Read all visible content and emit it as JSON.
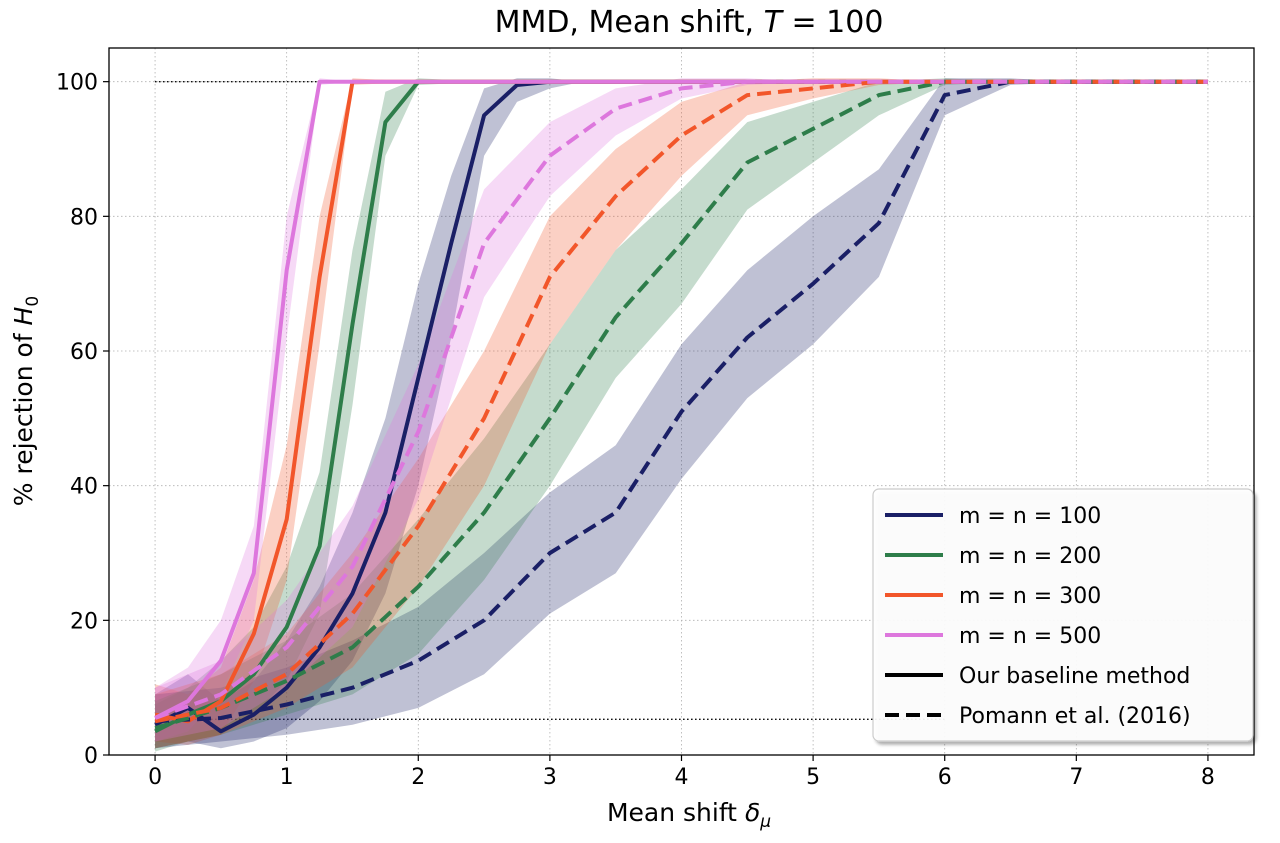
{
  "chart_data": {
    "type": "line",
    "title": "MMD, Mean shift, T = 100",
    "title_parts": [
      "MMD, Mean shift, ",
      "T",
      " = 100"
    ],
    "xlabel": "Mean shift δ_μ",
    "xlabel_parts": [
      "Mean shift ",
      "δ",
      "μ"
    ],
    "ylabel": "% rejection of H_0",
    "ylabel_parts": [
      "% rejection of ",
      "H",
      "0"
    ],
    "xlim": [
      -0.35,
      8.35
    ],
    "ylim": [
      0,
      105
    ],
    "xticks": [
      0,
      1,
      2,
      3,
      4,
      5,
      6,
      7,
      8
    ],
    "xtick_labels": [
      "0",
      "1",
      "2",
      "3",
      "4",
      "5",
      "6",
      "7",
      "8"
    ],
    "yticks": [
      0,
      20,
      40,
      60,
      80,
      100
    ],
    "ytick_labels": [
      "0",
      "20",
      "40",
      "60",
      "80",
      "100"
    ],
    "grid": true,
    "reference_lines": [
      {
        "name": "100% reference",
        "y": 100,
        "x_range": [
          0,
          6
        ],
        "style": "dotted"
      },
      {
        "name": "5% level reference",
        "y": 5.3,
        "x_range": [
          0,
          6
        ],
        "style": "dotted"
      }
    ],
    "series": [
      {
        "name": "m = n = 100, Our baseline method",
        "color": "#1a1f66",
        "style": "solid",
        "x": [
          0,
          0.25,
          0.5,
          0.75,
          1,
          1.25,
          1.5,
          1.75,
          2,
          2.25,
          2.5,
          2.75,
          3,
          3.25,
          3.5,
          4,
          4.5,
          5,
          5.5,
          6,
          6.5,
          7,
          7.5,
          8
        ],
        "y": [
          4.5,
          7,
          3.5,
          6,
          10,
          16,
          24,
          36,
          56,
          76,
          95,
          99.5,
          100,
          100,
          100,
          100,
          100,
          100,
          100,
          100,
          100,
          100,
          100,
          100
        ],
        "lower": [
          1,
          2,
          1,
          2,
          4,
          8,
          14,
          24,
          40,
          62,
          89,
          97,
          99,
          100,
          100,
          100,
          100,
          100,
          100,
          100,
          100,
          100,
          100,
          100
        ],
        "upper": [
          9,
          12,
          8,
          11,
          17,
          25,
          36,
          50,
          70,
          86,
          99,
          100.5,
          100.5,
          100,
          100,
          100,
          100,
          100,
          100,
          100,
          100,
          100,
          100,
          100
        ]
      },
      {
        "name": "m = n = 200, Our baseline method",
        "color": "#2e7d4a",
        "style": "solid",
        "x": [
          0,
          0.25,
          0.5,
          0.75,
          1,
          1.25,
          1.5,
          1.75,
          2,
          2.5,
          3,
          3.5,
          4,
          4.5,
          5,
          5.5,
          6,
          6.5,
          7,
          7.5,
          8
        ],
        "y": [
          3.5,
          6,
          8,
          12,
          19,
          31,
          64,
          94,
          100,
          100,
          100,
          100,
          100,
          100,
          100,
          100,
          100,
          100,
          100,
          100,
          100
        ],
        "lower": [
          0.5,
          2,
          3,
          6,
          11,
          21,
          52,
          89,
          99.5,
          100,
          100,
          100,
          100,
          100,
          100,
          100,
          100,
          100,
          100,
          100,
          100
        ],
        "upper": [
          7.5,
          10,
          14,
          19,
          28,
          42,
          75,
          98.5,
          100.5,
          100,
          100,
          100,
          100,
          100,
          100,
          100,
          100,
          100,
          100,
          100,
          100
        ]
      },
      {
        "name": "m = n = 300, Our baseline method",
        "color": "#f2562a",
        "style": "solid",
        "x": [
          0,
          0.25,
          0.5,
          0.75,
          1,
          1.25,
          1.5,
          2,
          2.5,
          3,
          3.5,
          4,
          4.5,
          5,
          5.5,
          6,
          6.5,
          7,
          7.5,
          8
        ],
        "y": [
          6,
          5,
          8,
          18,
          35,
          71,
          100,
          100,
          100,
          100,
          100,
          100,
          100,
          100,
          100,
          100,
          100,
          100,
          100,
          100
        ],
        "lower": [
          2,
          1.5,
          3,
          11,
          26,
          61,
          99.5,
          100,
          100,
          100,
          100,
          100,
          100,
          100,
          100,
          100,
          100,
          100,
          100,
          100
        ],
        "upper": [
          10.5,
          9,
          13,
          26,
          46,
          80,
          100.5,
          100,
          100,
          100,
          100,
          100,
          100,
          100,
          100,
          100,
          100,
          100,
          100,
          100
        ]
      },
      {
        "name": "m = n = 500, Our baseline method",
        "color": "#dd77dd",
        "style": "solid",
        "x": [
          0,
          0.25,
          0.5,
          0.75,
          1,
          1.25,
          1.5,
          2,
          2.5,
          3,
          3.5,
          4,
          4.5,
          5,
          5.5,
          6,
          6.5,
          7,
          7.5,
          8
        ],
        "y": [
          5.5,
          8,
          14,
          27,
          72,
          100,
          100,
          100,
          100,
          100,
          100,
          100,
          100,
          100,
          100,
          100,
          100,
          100,
          100,
          100
        ],
        "lower": [
          2,
          3.5,
          9,
          20,
          62,
          99.5,
          100,
          100,
          100,
          100,
          100,
          100,
          100,
          100,
          100,
          100,
          100,
          100,
          100,
          100
        ],
        "upper": [
          10,
          13,
          20,
          34,
          80,
          100.5,
          100,
          100,
          100,
          100,
          100,
          100,
          100,
          100,
          100,
          100,
          100,
          100,
          100,
          100
        ]
      },
      {
        "name": "m = n = 100, Pomann et al. (2016)",
        "color": "#1a1f66",
        "style": "dashed",
        "x": [
          0,
          0.5,
          1,
          1.5,
          2,
          2.5,
          3,
          3.5,
          4,
          4.5,
          5,
          5.5,
          6,
          6.5,
          7,
          7.5,
          8
        ],
        "y": [
          5,
          5.5,
          7.5,
          10,
          14,
          20,
          30,
          36,
          51,
          62,
          70,
          79,
          98,
          100,
          100,
          100,
          100
        ],
        "lower": [
          1,
          2,
          3,
          4.5,
          7,
          12,
          21,
          27,
          41,
          53,
          61,
          71,
          95,
          99.5,
          100,
          100,
          100
        ],
        "upper": [
          9,
          10,
          13,
          17,
          22,
          30,
          39,
          46,
          61,
          72,
          80,
          87,
          100.5,
          100.5,
          100,
          100,
          100
        ]
      },
      {
        "name": "m = n = 200, Pomann et al. (2016)",
        "color": "#2e7d4a",
        "style": "dashed",
        "x": [
          0,
          0.5,
          1,
          1.5,
          2,
          2.5,
          3,
          3.5,
          4,
          4.5,
          5,
          5.5,
          6,
          6.5,
          7,
          7.5,
          8
        ],
        "y": [
          4,
          7,
          11,
          16,
          25,
          36,
          50,
          65,
          76,
          88,
          93,
          98,
          100,
          100,
          100,
          100,
          100
        ],
        "lower": [
          1,
          3,
          6,
          9,
          15,
          26,
          40,
          56,
          67,
          81,
          88,
          95,
          99.5,
          100,
          100,
          100,
          100
        ],
        "upper": [
          8,
          12,
          17,
          24,
          35,
          47,
          61,
          75,
          84,
          94,
          97,
          100,
          100.5,
          100,
          100,
          100,
          100
        ]
      },
      {
        "name": "m = n = 300, Pomann et al. (2016)",
        "color": "#f2562a",
        "style": "dashed",
        "x": [
          0,
          0.5,
          1,
          1.5,
          2,
          2.5,
          3,
          3.5,
          4,
          4.5,
          5,
          5.5,
          6,
          6.5,
          7,
          7.5,
          8
        ],
        "y": [
          5,
          7,
          12,
          21,
          34,
          50,
          71,
          83,
          92,
          98,
          99,
          100,
          100,
          100,
          100,
          100,
          100
        ],
        "lower": [
          1,
          3,
          7,
          13,
          25,
          40,
          61,
          75,
          86,
          95,
          97.5,
          99.5,
          100,
          100,
          100,
          100,
          100
        ],
        "upper": [
          9,
          12,
          18,
          30,
          44,
          60,
          80,
          90,
          97,
          100,
          100.5,
          100.5,
          100,
          100,
          100,
          100,
          100
        ]
      },
      {
        "name": "m = n = 500, Pomann et al. (2016)",
        "color": "#dd77dd",
        "style": "dashed",
        "x": [
          0,
          0.5,
          1,
          1.5,
          2,
          2.5,
          3,
          3.5,
          4,
          4.5,
          5,
          5.5,
          6,
          6.5,
          7,
          7.5,
          8
        ],
        "y": [
          5.5,
          9,
          16,
          28,
          48,
          76,
          89,
          96,
          99,
          100,
          100,
          100,
          100,
          100,
          100,
          100,
          100
        ],
        "lower": [
          2,
          4,
          10,
          19,
          38,
          68,
          83,
          92,
          97.5,
          99.5,
          100,
          100,
          100,
          100,
          100,
          100,
          100
        ],
        "upper": [
          10,
          14,
          23,
          37,
          58,
          84,
          94,
          99,
          100.5,
          100.5,
          100,
          100,
          100,
          100,
          100,
          100,
          100
        ]
      }
    ],
    "legend": {
      "location": "lower right",
      "entries": [
        {
          "label": "m = n = 100",
          "color": "#1a1f66",
          "style": "solid"
        },
        {
          "label": "m = n = 200",
          "color": "#2e7d4a",
          "style": "solid"
        },
        {
          "label": "m = n = 300",
          "color": "#f2562a",
          "style": "solid"
        },
        {
          "label": "m = n = 500",
          "color": "#dd77dd",
          "style": "solid"
        },
        {
          "label": "Our baseline method",
          "color": "#000000",
          "style": "solid"
        },
        {
          "label": "Pomann et al. (2016)",
          "color": "#000000",
          "style": "dashed"
        }
      ]
    }
  }
}
